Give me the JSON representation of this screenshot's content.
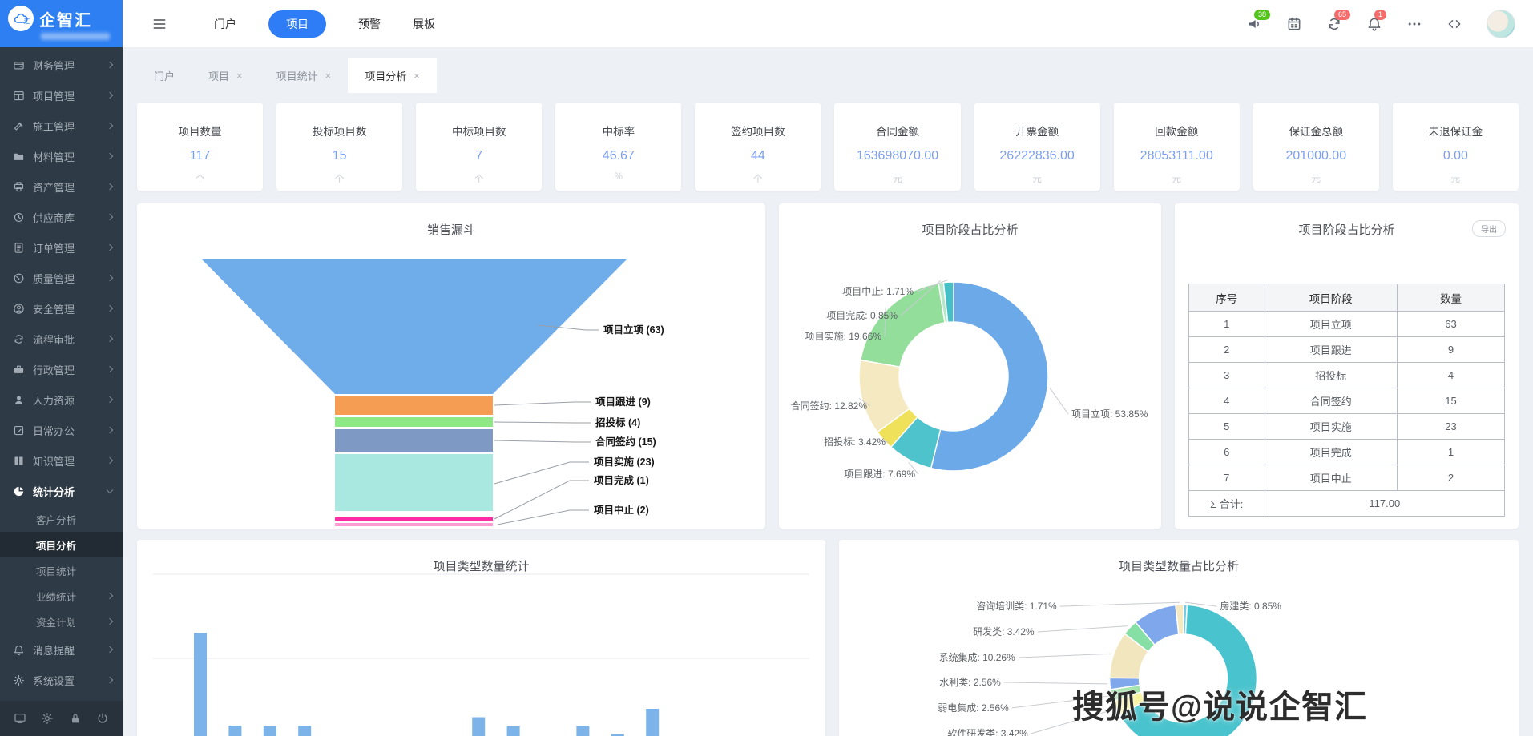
{
  "app": {
    "logo_text": "企智汇",
    "logo_mark": "汇",
    "watermark": "搜狐号@说说企智汇"
  },
  "header": {
    "nav_items": [
      {
        "label": "门户",
        "active": false
      },
      {
        "label": "项目",
        "active": true
      },
      {
        "label": "预警",
        "active": false
      },
      {
        "label": "展板",
        "active": false
      }
    ],
    "icons": [
      {
        "name": "megaphone",
        "badge": "38",
        "badge_color": "#52C41A"
      },
      {
        "name": "calendar"
      },
      {
        "name": "sync",
        "badge": "65",
        "badge_color": "#F56C6C"
      },
      {
        "name": "bell",
        "badge": "1",
        "badge_color": "#F56C6C"
      },
      {
        "name": "ellipsis"
      },
      {
        "name": "code"
      }
    ]
  },
  "sidebar": {
    "items": [
      {
        "label": "财务管理",
        "icon": "wallet"
      },
      {
        "label": "项目管理",
        "icon": "grid"
      },
      {
        "label": "施工管理",
        "icon": "hammer"
      },
      {
        "label": "材料管理",
        "icon": "folder"
      },
      {
        "label": "资产管理",
        "icon": "printer"
      },
      {
        "label": "供应商库",
        "icon": "history"
      },
      {
        "label": "订单管理",
        "icon": "document"
      },
      {
        "label": "质量管理",
        "icon": "gauge"
      },
      {
        "label": "安全管理",
        "icon": "user-circle"
      },
      {
        "label": "流程审批",
        "icon": "sync"
      },
      {
        "label": "行政管理",
        "icon": "briefcase"
      },
      {
        "label": "人力资源",
        "icon": "user"
      },
      {
        "label": "日常办公",
        "icon": "edit"
      },
      {
        "label": "知识管理",
        "icon": "book"
      },
      {
        "label": "统计分析",
        "icon": "pie",
        "expanded": true,
        "children": [
          {
            "label": "客户分析"
          },
          {
            "label": "项目分析",
            "active": true
          },
          {
            "label": "项目统计"
          },
          {
            "label": "业绩统计",
            "chevron": true
          },
          {
            "label": "资金计划",
            "chevron": true
          }
        ]
      },
      {
        "label": "消息提醒",
        "icon": "bell"
      },
      {
        "label": "系统设置",
        "icon": "gear"
      }
    ],
    "footer_icons": [
      "monitor",
      "gear",
      "lock",
      "power"
    ]
  },
  "tabs": [
    {
      "label": "门户",
      "closable": false,
      "active": false
    },
    {
      "label": "项目",
      "closable": true,
      "active": false
    },
    {
      "label": "项目统计",
      "closable": true,
      "active": false
    },
    {
      "label": "项目分析",
      "closable": true,
      "active": true
    }
  ],
  "stat_cards": [
    {
      "label": "项目数量",
      "value": "117",
      "unit": "个"
    },
    {
      "label": "投标项目数",
      "value": "15",
      "unit": "个"
    },
    {
      "label": "中标项目数",
      "value": "7",
      "unit": "个"
    },
    {
      "label": "中标率",
      "value": "46.67",
      "unit": "%"
    },
    {
      "label": "签约项目数",
      "value": "44",
      "unit": "个"
    },
    {
      "label": "合同金额",
      "value": "163698070.00",
      "unit": "元"
    },
    {
      "label": "开票金额",
      "value": "26222836.00",
      "unit": "元"
    },
    {
      "label": "回款金额",
      "value": "28053111.00",
      "unit": "元"
    },
    {
      "label": "保证金总额",
      "value": "201000.00",
      "unit": "元"
    },
    {
      "label": "未退保证金",
      "value": "0.00",
      "unit": "元"
    }
  ],
  "chart_data": [
    {
      "id": "sales_funnel",
      "type": "funnel",
      "title": "销售漏斗",
      "items": [
        {
          "label": "项目立项",
          "value": 63,
          "color": "#6FACEA"
        },
        {
          "label": "项目跟进",
          "value": 9,
          "color": "#F49D53"
        },
        {
          "label": "招投标",
          "value": 4,
          "color": "#8DE885"
        },
        {
          "label": "合同签约",
          "value": 15,
          "color": "#7E99C4"
        },
        {
          "label": "项目实施",
          "value": 23,
          "color": "#A9E8E0"
        },
        {
          "label": "项目完成",
          "value": 1,
          "color": "#FF2DA4"
        },
        {
          "label": "项目中止",
          "value": 2,
          "color": "#FF9AD6"
        }
      ]
    },
    {
      "id": "stage_donut",
      "type": "pie",
      "title": "项目阶段占比分析",
      "legend_position": "none",
      "label_style": "outside",
      "slices": [
        {
          "label": "项目立项",
          "pct": 53.85,
          "color": "#6CA9E8"
        },
        {
          "label": "项目跟进",
          "pct": 7.69,
          "color": "#4EC3CB"
        },
        {
          "label": "招投标",
          "pct": 3.42,
          "color": "#EFE15A"
        },
        {
          "label": "合同签约",
          "pct": 12.82,
          "color": "#F5E9C2"
        },
        {
          "label": "项目实施",
          "pct": 19.66,
          "color": "#94DE9C"
        },
        {
          "label": "项目完成",
          "pct": 0.85,
          "color": "#B5E8C8"
        },
        {
          "label": "项目中止",
          "pct": 1.71,
          "color": "#45BFC6"
        }
      ]
    },
    {
      "id": "stage_table",
      "type": "table",
      "title": "项目阶段占比分析",
      "export_label": "导出",
      "headers": [
        "序号",
        "项目阶段",
        "数量"
      ],
      "rows": [
        [
          "1",
          "项目立项",
          "63"
        ],
        [
          "2",
          "项目跟进",
          "9"
        ],
        [
          "3",
          "招投标",
          "4"
        ],
        [
          "4",
          "合同签约",
          "15"
        ],
        [
          "5",
          "项目实施",
          "23"
        ],
        [
          "6",
          "项目完成",
          "1"
        ],
        [
          "7",
          "项目中止",
          "2"
        ]
      ],
      "total_label": "Σ 合计:",
      "total_value": "117.00"
    },
    {
      "id": "type_bar",
      "type": "bar",
      "title": "项目类型数量统计",
      "categories": null,
      "note": "x-axis labels and axis cut off at bottom of screenshot; values estimated from gridlines",
      "values_estimated": [
        13,
        2,
        2,
        2,
        0,
        0,
        0,
        0,
        3,
        2,
        0,
        2,
        1,
        4
      ],
      "ylim": [
        0,
        20
      ],
      "gridlines": [
        10,
        20
      ],
      "bar_color": "#7CB4EA"
    },
    {
      "id": "type_donut",
      "type": "pie",
      "title": "项目类型数量占比分析",
      "legend_position": "none",
      "label_style": "outside",
      "note": "two large slices unlabeled in screenshot; their pct estimated",
      "slices": [
        {
          "label": "房建类",
          "pct": 0.85,
          "color": "#74CBE3"
        },
        {
          "label": "",
          "pct": 65.72,
          "color": "#49C3CD",
          "unlabeled": true
        },
        {
          "label": "软件研发类",
          "pct": 3.42,
          "color": "#F7F29B"
        },
        {
          "label": "弱电集成",
          "pct": 2.56,
          "color": "#9FE3A8"
        },
        {
          "label": "水利类",
          "pct": 2.56,
          "color": "#7FA8EC"
        },
        {
          "label": "系统集成",
          "pct": 10.26,
          "color": "#F2E6BE"
        },
        {
          "label": "研发类",
          "pct": 3.42,
          "color": "#86DFA5"
        },
        {
          "label": "",
          "pct": 9.56,
          "color": "#7FA8EC",
          "unlabeled": true
        },
        {
          "label": "咨询培训类",
          "pct": 1.71,
          "color": "#F5E9C2"
        }
      ]
    }
  ]
}
